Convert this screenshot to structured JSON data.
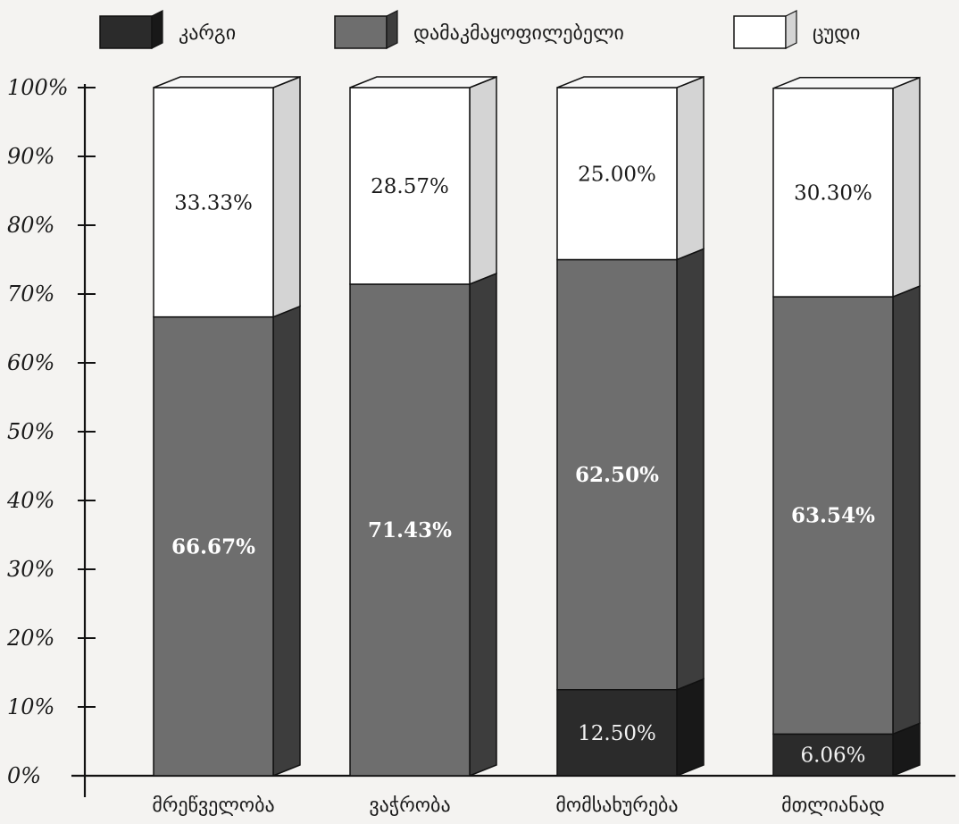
{
  "chart_data": {
    "type": "bar",
    "stacked": true,
    "three_d": true,
    "categories": [
      "მრეწველობა",
      "ვაჭრობა",
      "მომსახურება",
      "მთლიანად"
    ],
    "series": [
      {
        "name": "კარგი",
        "color": "#2b2b2b",
        "values": [
          0,
          0,
          12.5,
          6.06
        ],
        "labels": [
          "",
          "",
          "12.50%",
          "6.06%"
        ]
      },
      {
        "name": "დამაკმაყოფილებელი",
        "color": "#6e6e6e",
        "values": [
          66.67,
          71.43,
          62.5,
          63.54
        ],
        "labels": [
          "66.67%",
          "71.43%",
          "62.50%",
          "63.54%"
        ]
      },
      {
        "name": "ცუდი",
        "color": "#ffffff",
        "values": [
          33.33,
          28.57,
          25.0,
          30.3
        ],
        "labels": [
          "33.33%",
          "28.57%",
          "25.00%",
          "30.30%"
        ]
      }
    ],
    "y_ticks": [
      "0%",
      "10%",
      "20%",
      "30%",
      "40%",
      "50%",
      "60%",
      "70%",
      "80%",
      "90%",
      "100%"
    ],
    "ylim": [
      0,
      100
    ],
    "legend_position": "top",
    "grid": false
  }
}
